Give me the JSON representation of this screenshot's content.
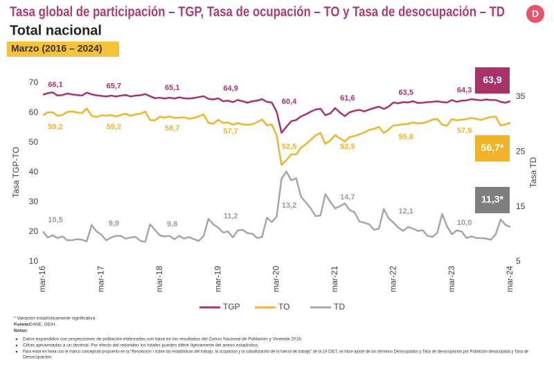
{
  "chart_data": {
    "type": "line",
    "title": "Tasa global de participación – TGP, Tasa de ocupación – TO y Tasa de desocupación – TD",
    "subtitle": "Total nacional",
    "period": "Marzo (2016 – 2024)",
    "y_label": "Tasa TGP-TO",
    "y2_label": "Tasa TD",
    "ylim": [
      10,
      70
    ],
    "yticks": [
      10,
      20,
      30,
      40,
      50,
      60,
      70
    ],
    "y2lim": [
      5,
      37.5
    ],
    "y2ticks": [
      5,
      15,
      25,
      35
    ],
    "categories": [
      "mar-16",
      null,
      null,
      null,
      null,
      null,
      null,
      null,
      null,
      null,
      null,
      null,
      "mar-17",
      null,
      null,
      null,
      null,
      null,
      null,
      null,
      null,
      null,
      null,
      null,
      "mar-18",
      null,
      null,
      null,
      null,
      null,
      null,
      null,
      null,
      null,
      null,
      null,
      "mar-19",
      null,
      null,
      null,
      null,
      null,
      null,
      null,
      null,
      null,
      null,
      null,
      "mar-20",
      null,
      null,
      null,
      null,
      null,
      null,
      null,
      null,
      null,
      null,
      null,
      "mar-21",
      null,
      null,
      null,
      null,
      null,
      null,
      null,
      null,
      null,
      null,
      null,
      "mar-22",
      null,
      null,
      null,
      null,
      null,
      null,
      null,
      null,
      null,
      null,
      null,
      "mar-23",
      null,
      null,
      null,
      null,
      null,
      null,
      null,
      null,
      null,
      null,
      null,
      "mar-24"
    ],
    "series": [
      {
        "name": "TGP",
        "color": "#a8336b",
        "axis": "y",
        "values": [
          66.1,
          66.6,
          66.9,
          65.8,
          66.0,
          66.5,
          66.2,
          66.0,
          65.8,
          66.8,
          66.2,
          65.9,
          65.7,
          65.5,
          65.8,
          65.5,
          65.8,
          66.0,
          65.5,
          65.8,
          65.9,
          66.3,
          65.6,
          64.9,
          65.1,
          64.8,
          65.1,
          64.8,
          65.2,
          64.9,
          64.8,
          65.0,
          65.3,
          65.6,
          64.7,
          64.5,
          64.9,
          63.9,
          64.1,
          63.6,
          64.3,
          63.9,
          63.4,
          63.9,
          64.1,
          64.6,
          63.7,
          63.5,
          60.4,
          53.3,
          55.3,
          57.2,
          57.6,
          58.8,
          59.5,
          60.4,
          61.1,
          61.4,
          59.2,
          59.8,
          61.6,
          60.1,
          58.9,
          60.2,
          60.7,
          61.0,
          60.5,
          61.1,
          61.6,
          62.1,
          61.3,
          62.1,
          63.5,
          63.2,
          63.6,
          63.5,
          63.9,
          63.3,
          63.4,
          63.6,
          63.7,
          63.9,
          63.6,
          63.5,
          64.3,
          63.7,
          64.1,
          64.2,
          64.6,
          64.4,
          64.2,
          64.5,
          64.3,
          64.3,
          63.7,
          63.4,
          63.9
        ],
        "value_labels": [
          "66,1",
          null,
          null,
          null,
          null,
          null,
          null,
          null,
          null,
          null,
          null,
          null,
          "65,7",
          null,
          null,
          null,
          null,
          null,
          null,
          null,
          null,
          null,
          null,
          null,
          "65,1",
          null,
          null,
          null,
          null,
          null,
          null,
          null,
          null,
          null,
          null,
          null,
          "64,9",
          null,
          null,
          null,
          null,
          null,
          null,
          null,
          null,
          null,
          null,
          null,
          "60,4",
          null,
          null,
          null,
          null,
          null,
          null,
          null,
          null,
          null,
          null,
          null,
          "61,6",
          null,
          null,
          null,
          null,
          null,
          null,
          null,
          null,
          null,
          null,
          null,
          "63,5",
          null,
          null,
          null,
          null,
          null,
          null,
          null,
          null,
          null,
          null,
          null,
          "64,3",
          null,
          null,
          null,
          null,
          null,
          null,
          null,
          null,
          null,
          null,
          null,
          "63,9"
        ]
      },
      {
        "name": "TO",
        "color": "#f2b32b",
        "axis": "y",
        "values": [
          59.2,
          60.2,
          60.2,
          59.0,
          59.3,
          60.3,
          60.5,
          60.1,
          59.9,
          61.5,
          59.0,
          58.6,
          59.2,
          59.0,
          59.3,
          58.8,
          59.3,
          59.7,
          59.0,
          59.5,
          59.7,
          60.4,
          57.6,
          57.5,
          58.7,
          58.4,
          58.8,
          58.3,
          58.4,
          58.5,
          58.0,
          58.3,
          58.8,
          59.5,
          56.6,
          56.3,
          57.7,
          56.6,
          56.8,
          56.0,
          56.6,
          56.1,
          56.0,
          56.2,
          56.9,
          57.8,
          55.8,
          56.1,
          52.5,
          42.5,
          44.1,
          46.1,
          46.0,
          48.3,
          49.5,
          51.0,
          52.4,
          53.3,
          49.6,
          50.7,
          52.5,
          51.5,
          50.4,
          51.9,
          52.2,
          52.8,
          53.4,
          54.3,
          54.6,
          55.3,
          53.2,
          54.4,
          55.8,
          55.9,
          56.2,
          56.3,
          56.8,
          56.4,
          56.6,
          57.0,
          57.7,
          57.9,
          56.0,
          55.7,
          57.9,
          57.5,
          57.7,
          57.9,
          58.3,
          58.0,
          57.6,
          58.2,
          58.6,
          58.7,
          55.8,
          56.1,
          56.7
        ],
        "value_labels": [
          "59,2",
          null,
          null,
          null,
          null,
          null,
          null,
          null,
          null,
          null,
          null,
          null,
          "59,2",
          null,
          null,
          null,
          null,
          null,
          null,
          null,
          null,
          null,
          null,
          null,
          "58,7",
          null,
          null,
          null,
          null,
          null,
          null,
          null,
          null,
          null,
          null,
          null,
          "57,7",
          null,
          null,
          null,
          null,
          null,
          null,
          null,
          null,
          null,
          null,
          null,
          "52,5",
          null,
          null,
          null,
          null,
          null,
          null,
          null,
          null,
          null,
          null,
          null,
          "52,5",
          null,
          null,
          null,
          null,
          null,
          null,
          null,
          null,
          null,
          null,
          null,
          "55,8",
          null,
          null,
          null,
          null,
          null,
          null,
          null,
          null,
          null,
          null,
          null,
          "57,9",
          null,
          null,
          null,
          null,
          null,
          null,
          null,
          null,
          null,
          null,
          null,
          "56,7*"
        ]
      },
      {
        "name": "TD",
        "color": "#a6a6a6",
        "axis": "y2",
        "values": [
          10.5,
          9.4,
          9.8,
          9.3,
          9.6,
          8.9,
          8.9,
          9.1,
          9.0,
          8.7,
          11.7,
          10.5,
          9.9,
          8.9,
          9.4,
          9.7,
          9.7,
          9.2,
          9.4,
          9.5,
          8.8,
          8.6,
          11.8,
          10.8,
          9.8,
          9.6,
          9.7,
          9.1,
          9.7,
          9.2,
          9.5,
          9.1,
          8.8,
          9.7,
          12.8,
          11.8,
          11.2,
          10.3,
          10.5,
          9.4,
          10.7,
          10.8,
          10.2,
          10.1,
          9.3,
          9.5,
          13.0,
          12.2,
          13.2,
          20.1,
          21.4,
          19.8,
          20.2,
          16.8,
          15.8,
          14.7,
          13.3,
          13.4,
          17.3,
          15.9,
          14.7,
          15.1,
          15.6,
          14.4,
          14.0,
          12.3,
          12.1,
          11.8,
          10.8,
          11.0,
          14.6,
          12.9,
          12.1,
          11.2,
          10.6,
          11.3,
          11.0,
          10.6,
          10.7,
          9.7,
          9.5,
          10.3,
          13.7,
          11.4,
          10.0,
          10.7,
          10.5,
          9.3,
          9.6,
          9.3,
          9.3,
          9.2,
          9.0,
          10.0,
          12.7,
          11.7,
          11.3
        ],
        "value_labels": [
          "10,5",
          null,
          null,
          null,
          null,
          null,
          null,
          null,
          null,
          null,
          null,
          null,
          "9,9",
          null,
          null,
          null,
          null,
          null,
          null,
          null,
          null,
          null,
          null,
          null,
          "9,8",
          null,
          null,
          null,
          null,
          null,
          null,
          null,
          null,
          null,
          null,
          null,
          "11,2",
          null,
          null,
          null,
          null,
          null,
          null,
          null,
          null,
          null,
          null,
          null,
          "13,2",
          null,
          null,
          null,
          null,
          null,
          null,
          null,
          null,
          null,
          null,
          null,
          "14,7",
          null,
          null,
          null,
          null,
          null,
          null,
          null,
          null,
          null,
          null,
          null,
          "12,1",
          null,
          null,
          null,
          null,
          null,
          null,
          null,
          null,
          null,
          null,
          null,
          "10,0",
          null,
          null,
          null,
          null,
          null,
          null,
          null,
          null,
          null,
          null,
          null,
          "11,3*"
        ]
      }
    ],
    "footnote": "* Variación estadísticamente significativa.",
    "source_label": "Fuente:",
    "source": "DANE, GEIH.",
    "notes_title": "Notas:",
    "notes": [
      "Datos expandidos con proyecciones de población elaboradas con base en los resultados del Censo Nacional de Población y Vivienda 2018.",
      "Cifras aproximadas a un decimal. Por efecto del redondeo los totales pueden diferir ligeramente del anexo estadístico.",
      [
        "Para estar en línea con el marco conceptual propuesto en la “Resolución I sobre las estadísticas del trabajo, la ocupación y la subutilización de la fuerza de trabajo” de la 19 CIET, se hace ajuste de los términos Desocupados y Tasa de desocupación por Población desocupada y Tasa de",
        "Desocupación."
      ]
    ]
  }
}
